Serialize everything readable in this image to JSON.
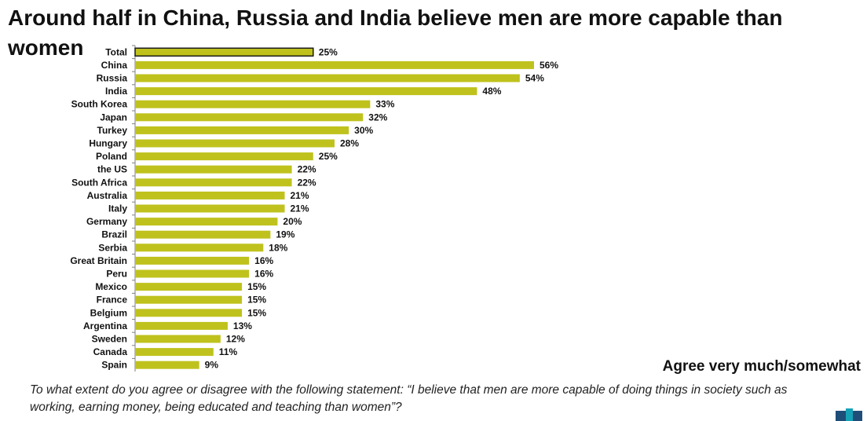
{
  "title": "Around half in China, Russia and India believe men are more capable than women",
  "legend_label": "Agree very much/somewhat",
  "footnote": "To what extent do you agree or disagree with the following statement: “I believe that men are more capable of doing things in society such as working, earning money, being educated and teaching than women”?",
  "colors": {
    "bar": "#bfc21d",
    "total_bar": "#bfc21d",
    "total_outline": "#1a1a1a",
    "axis": "#7f7f7f",
    "logo_dark": "#1f4e79",
    "logo_teal": "#16a3b8"
  },
  "chart_data": {
    "type": "bar",
    "orientation": "horizontal",
    "title": "Around half in China, Russia and India believe men are more capable than women",
    "xlabel": "",
    "ylabel": "",
    "xlim": [
      0,
      60
    ],
    "grid": false,
    "legend": "bottom-right",
    "categories": [
      "Total",
      "China",
      "Russia",
      "India",
      "South Korea",
      "Japan",
      "Turkey",
      "Hungary",
      "Poland",
      "the US",
      "South Africa",
      "Australia",
      "Italy",
      "Germany",
      "Brazil",
      "Serbia",
      "Great Britain",
      "Peru",
      "Mexico",
      "France",
      "Belgium",
      "Argentina",
      "Sweden",
      "Canada",
      "Spain"
    ],
    "series": [
      {
        "name": "Agree very much/somewhat",
        "values": [
          25,
          56,
          54,
          48,
          33,
          32,
          30,
          28,
          25,
          22,
          22,
          21,
          21,
          20,
          19,
          18,
          16,
          16,
          15,
          15,
          15,
          13,
          12,
          11,
          9
        ]
      }
    ],
    "value_suffix": "%"
  }
}
